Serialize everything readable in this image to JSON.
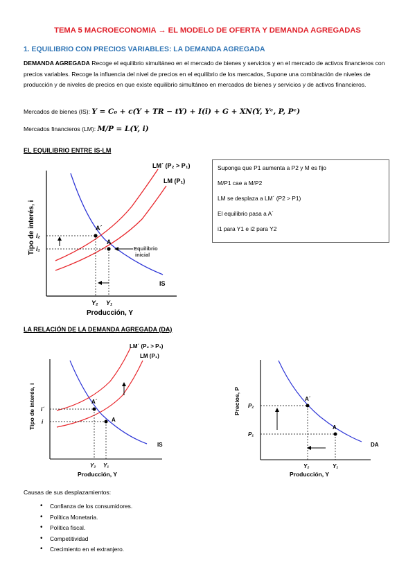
{
  "title": "TEMA 5 MACROECONOMIA → EL MODELO DE OFERTA Y DEMANDA AGREGADAS",
  "section1": "1. EQUILIBRIO CON PRECIOS VARIABLES: LA DEMANDA AGREGADA",
  "paragraph": {
    "bold": "DEMANDA AGREGADA",
    "text": " Recoge el equilibrio simultáneo en el mercado de bienes y servicios y en el mercado de activos financieros con precios variables. Recoge la influencia del nivel de precios en el equilibrio de los mercados, Supone una combinación de niveles de producción y de niveles de precios en que existe equilibrio simultáneo en mercados de bienes y servicios y de activos financieros."
  },
  "eq_goods": {
    "label": "Mercados de bienes (IS):",
    "formula": "Y = C₀ + c(Y + TR − tY) + I(i) + G + XN(Y, Yᵉ, P, Pᵉ)"
  },
  "eq_fin": {
    "label": "Mercados financieros (LM):",
    "formula": "M/P = L(Y, i)"
  },
  "heading_islm": "EL EQUILIBRIO ENTRE IS-LM",
  "graph1": {
    "ylabel": "Tipo de interés, i",
    "xlabel": "Producción, Y",
    "lm2": "LM´ (P₂ > P₁)",
    "lm1": "LM (P₁)",
    "is": "IS",
    "pointA2": "A´",
    "pointA": "A",
    "i2": "i₂",
    "i1": "i₁",
    "y2": "Y₂",
    "y1": "Y₁",
    "eq_note_1": "Equilibrio",
    "eq_note_2": "inicial"
  },
  "note_box": [
    "Suponga que P1 aumenta a P2 y M es fijo",
    "M/P1 cae a M/P2",
    "LM se desplaza a LM´ (P2 > P1)",
    "El equilibrio pasa a  A´",
    "i1 para Y1 e i2 para Y2"
  ],
  "heading_da": "LA RELACIÓN DE LA DEMANDA AGREGADA (DA)",
  "graph2": {
    "ylabel": "Tipo de interés, i",
    "xlabel": "Producción, Y",
    "lm2": "LM´ (P₂ > P₁)",
    "lm1": "LM (P₁)",
    "is": "IS",
    "pointA2": "A´",
    "pointA": "A",
    "i2": "i´",
    "i1": "i",
    "y2": "Y₂",
    "y1": "Y₁"
  },
  "graph3": {
    "ylabel": "Precios, P",
    "xlabel": "Producción, Y",
    "da": "DA",
    "pointA2": "A´",
    "pointA": "A",
    "p2": "P₂",
    "p1": "P₁",
    "y2": "Y₂",
    "y1": "Y₁"
  },
  "causes_title": "Causas de sus desplazamientos:",
  "causes": [
    "Confianza de los consumidores.",
    "Política Monetaria.",
    "Política fiscal.",
    "Competitividad",
    "Crecimiento en el extranjero."
  ],
  "colors": {
    "title": "#e0202a",
    "section": "#2e74b5",
    "lm_curves": "#e8262b",
    "is_curve": "#2d35d6"
  }
}
